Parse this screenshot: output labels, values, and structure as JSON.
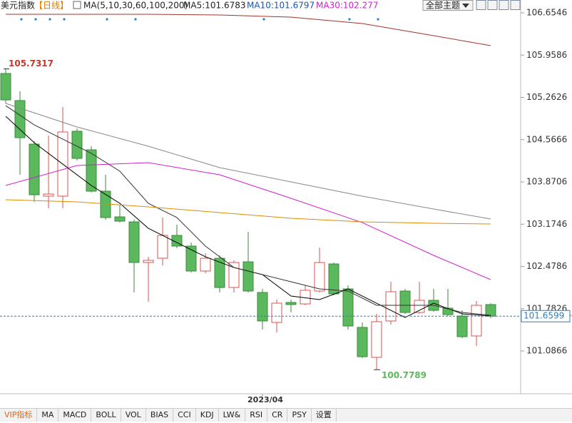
{
  "header": {
    "symbol": "美元指数",
    "period": "【日线】",
    "ma_label": "MA(5,10,30,60,100,200)",
    "ma_values": [
      "MA5:101.6783",
      "MA10:101.6797",
      "MA30:102.277"
    ],
    "theme_button": "全部主题"
  },
  "tabs": [
    "VIP指标",
    "MA",
    "MACD",
    "BOLL",
    "VOL",
    "BIAS",
    "CCI",
    "KDJ",
    "LW&",
    "RSI",
    "CR",
    "PSY",
    "设置"
  ],
  "chart_data": {
    "type": "candlestick",
    "categories": [
      null,
      null,
      null,
      null,
      null,
      null,
      null,
      null,
      null,
      null,
      null,
      null,
      null,
      null,
      null,
      null,
      null,
      null,
      "2023/04",
      null,
      null,
      null,
      null,
      null,
      null,
      null,
      null,
      null,
      null,
      null,
      null,
      null,
      null,
      null,
      null
    ],
    "open": [
      105.656,
      105.21,
      104.493,
      103.636,
      103.636,
      104.705,
      104.399,
      103.718,
      103.295,
      103.213,
      102.544,
      102.614,
      102.99,
      102.814,
      102.403,
      102.614,
      102.132,
      102.555,
      102.05,
      101.557,
      101.886,
      101.862,
      102.074,
      102.52,
      102.109,
      101.475,
      100.982,
      101.581,
      102.074,
      101.721,
      101.921,
      101.792,
      101.663,
      101.334,
      101.851
    ],
    "high": [
      105.7317,
      105.362,
      104.54,
      104.634,
      105.104,
      104.752,
      104.458,
      103.988,
      103.483,
      103.248,
      102.638,
      103.284,
      103.166,
      102.872,
      102.696,
      102.661,
      102.579,
      103.049,
      102.109,
      101.933,
      101.933,
      102.168,
      102.79,
      102.544,
      102.168,
      101.557,
      101.698,
      102.226,
      102.109,
      102.226,
      102.109,
      102.109,
      101.757,
      101.909,
      101.874
    ],
    "low": [
      105.163,
      103.988,
      103.542,
      103.436,
      103.436,
      104.223,
      103.695,
      103.248,
      103.201,
      102.05,
      101.898,
      102.497,
      102.778,
      102.379,
      102.367,
      102.05,
      102.05,
      102.05,
      101.44,
      101.393,
      101.721,
      101.839,
      102.05,
      102.003,
      101.44,
      100.97,
      100.7789,
      101.522,
      101.698,
      101.698,
      101.733,
      101.663,
      101.299,
      101.169,
      101.627
    ],
    "close": [
      105.221,
      104.599,
      103.659,
      103.671,
      104.693,
      104.258,
      103.718,
      103.284,
      103.225,
      102.544,
      102.579,
      102.99,
      102.814,
      102.403,
      102.614,
      102.132,
      102.544,
      102.074,
      101.581,
      101.874,
      101.851,
      102.086,
      102.544,
      102.027,
      101.498,
      100.993,
      101.569,
      102.062,
      101.721,
      101.921,
      101.756,
      101.686,
      101.322,
      101.839,
      101.6599
    ],
    "up_color": "#d9534f",
    "down_color": "#5cb85c",
    "ma_lines": [
      {
        "color": "#000000",
        "x": [
          0,
          2,
          4,
          6,
          8,
          10,
          12,
          14,
          16,
          18,
          20,
          22,
          24,
          26,
          28,
          30,
          32,
          34
        ],
        "values": [
          104.951,
          104.517,
          104.164,
          103.812,
          103.518,
          103.107,
          102.872,
          102.638,
          102.461,
          102.344,
          101.992,
          101.933,
          102.109,
          101.874,
          101.639,
          101.874,
          101.698,
          101.663
        ]
      },
      {
        "color": "#333333",
        "x": [
          0,
          2,
          4,
          6,
          8,
          10,
          12,
          14,
          16,
          18,
          20,
          22,
          24,
          26,
          28,
          30,
          32,
          34
        ],
        "values": [
          105.127,
          104.81,
          104.575,
          104.341,
          104.047,
          103.518,
          103.284,
          102.814,
          102.461,
          102.344,
          102.226,
          102.109,
          102.074,
          101.839,
          101.839,
          101.839,
          101.721,
          101.674
        ]
      },
      {
        "color": "#d020d0",
        "x": [
          0,
          5,
          10,
          15,
          20,
          25,
          30,
          34
        ],
        "values": [
          103.812,
          104.141,
          104.188,
          103.988,
          103.601,
          103.201,
          102.661,
          102.262
        ]
      },
      {
        "color": "#e08a00",
        "x": [
          0,
          5,
          10,
          15,
          20,
          25,
          30,
          34
        ],
        "values": [
          103.577,
          103.542,
          103.46,
          103.366,
          103.272,
          103.213,
          103.19,
          103.178
        ]
      },
      {
        "color": "#888888",
        "x": [
          0,
          5,
          10,
          15,
          20,
          25,
          30,
          34
        ],
        "values": [
          105.163,
          104.775,
          104.458,
          104.106,
          103.871,
          103.636,
          103.424,
          103.26
        ]
      },
      {
        "color": "#a0342a",
        "x": [
          0,
          5,
          10,
          15,
          20,
          25,
          30,
          34
        ],
        "values": [
          106.631,
          106.631,
          106.631,
          106.619,
          106.584,
          106.478,
          106.279,
          106.114
        ]
      }
    ],
    "max_label": 105.7317,
    "min_label": 100.7789,
    "last_price": 101.6599,
    "ylim": [
      100.406,
      106.866
    ],
    "yticks": [
      101.0866,
      101.7826,
      102.4786,
      103.1746,
      103.8706,
      104.5666,
      105.2626,
      105.9586,
      106.6546
    ]
  }
}
